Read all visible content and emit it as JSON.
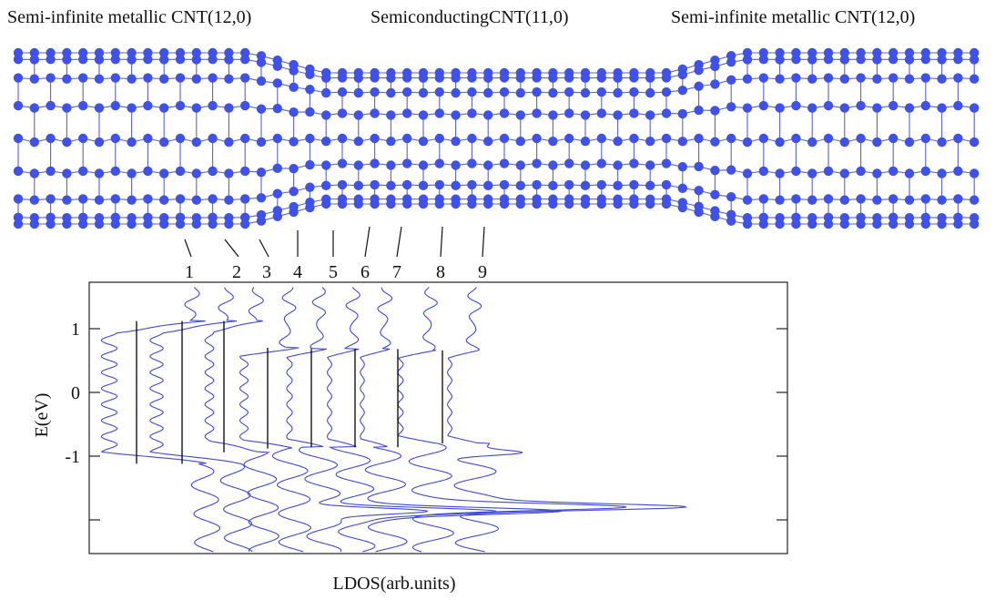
{
  "header": {
    "left_label": "Semi-infinite metallic CNT(12,0)",
    "center_label": "SemiconductingCNT(11,0)",
    "right_label": "Semi-infinite metallic CNT(12,0)"
  },
  "colors": {
    "atom": "#3f51e6",
    "bond": "#5a62c8",
    "curve": "#3e49d6",
    "axis": "#222222",
    "gap_line": "#000000"
  },
  "chart_data": {
    "type": "line",
    "title": "",
    "xlabel": "LDOS(arb.units)",
    "ylabel": "E(eV)",
    "ylim": [
      -2.5,
      1.65
    ],
    "yticks": [
      1,
      0,
      -1,
      -2
    ],
    "ytick_labels": [
      "1",
      "0",
      "-1",
      ""
    ],
    "grid": false,
    "site_labels": [
      "1",
      "2",
      "3",
      "4",
      "5",
      "6",
      "7",
      "8",
      "9"
    ],
    "gap_edges": [
      {
        "site": "1",
        "lower": -1.12,
        "upper": 1.12
      },
      {
        "site": "2",
        "lower": -1.12,
        "upper": 1.12
      },
      {
        "site": "3",
        "lower": -0.94,
        "upper": 1.12
      },
      {
        "site": "4",
        "lower": -0.88,
        "upper": 0.7
      },
      {
        "site": "5",
        "lower": -0.86,
        "upper": 0.68
      },
      {
        "site": "6",
        "lower": -0.86,
        "upper": 0.68
      },
      {
        "site": "7",
        "lower": -0.86,
        "upper": 0.68
      },
      {
        "site": "8",
        "lower": -0.8,
        "upper": 0.66
      }
    ]
  },
  "annotations": {
    "lead_atoms": "12",
    "center_atoms": "11"
  }
}
